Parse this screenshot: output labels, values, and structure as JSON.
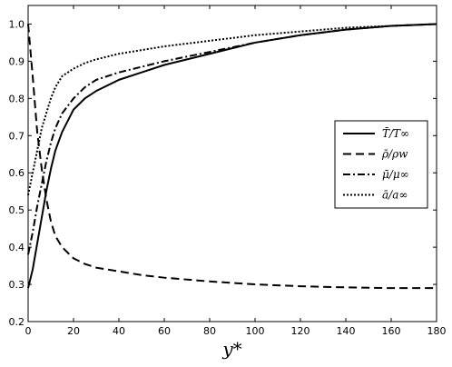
{
  "chart_data": {
    "type": "line",
    "title": "",
    "xlabel": "y*",
    "ylabel": "",
    "xlim": [
      0,
      180
    ],
    "ylim": [
      0.2,
      1.05
    ],
    "xticks": [
      "0",
      "20",
      "40",
      "60",
      "80",
      "100",
      "120",
      "140",
      "160",
      "180"
    ],
    "yticks": [
      "0.2",
      "0.3",
      "0.4",
      "0.5",
      "0.6",
      "0.7",
      "0.8",
      "0.9",
      "1.0"
    ],
    "grid": false,
    "legend_position": "right",
    "x": [
      0,
      2,
      4,
      6,
      8,
      10,
      12,
      15,
      20,
      25,
      30,
      40,
      50,
      60,
      80,
      100,
      120,
      140,
      160,
      180
    ],
    "series": [
      {
        "name": "T̄/T∞",
        "style": "solid",
        "values": [
          0.29,
          0.34,
          0.41,
          0.48,
          0.55,
          0.61,
          0.66,
          0.71,
          0.77,
          0.8,
          0.82,
          0.85,
          0.87,
          0.89,
          0.92,
          0.95,
          0.97,
          0.985,
          0.995,
          1.0
        ]
      },
      {
        "name": "ρ̄/ρw",
        "style": "dashed",
        "values": [
          1.0,
          0.86,
          0.71,
          0.61,
          0.53,
          0.47,
          0.43,
          0.4,
          0.37,
          0.355,
          0.345,
          0.335,
          0.325,
          0.318,
          0.308,
          0.3,
          0.295,
          0.292,
          0.29,
          0.29
        ]
      },
      {
        "name": "μ̄/μ∞",
        "style": "dashdot",
        "values": [
          0.38,
          0.44,
          0.51,
          0.57,
          0.63,
          0.68,
          0.72,
          0.76,
          0.8,
          0.83,
          0.85,
          0.87,
          0.885,
          0.9,
          0.925,
          0.95,
          0.97,
          0.985,
          0.995,
          1.0
        ]
      },
      {
        "name": "ā/a∞",
        "style": "dotted",
        "values": [
          0.54,
          0.6,
          0.66,
          0.72,
          0.76,
          0.8,
          0.83,
          0.86,
          0.88,
          0.895,
          0.905,
          0.92,
          0.93,
          0.94,
          0.955,
          0.97,
          0.98,
          0.99,
          0.995,
          1.0
        ]
      }
    ]
  }
}
